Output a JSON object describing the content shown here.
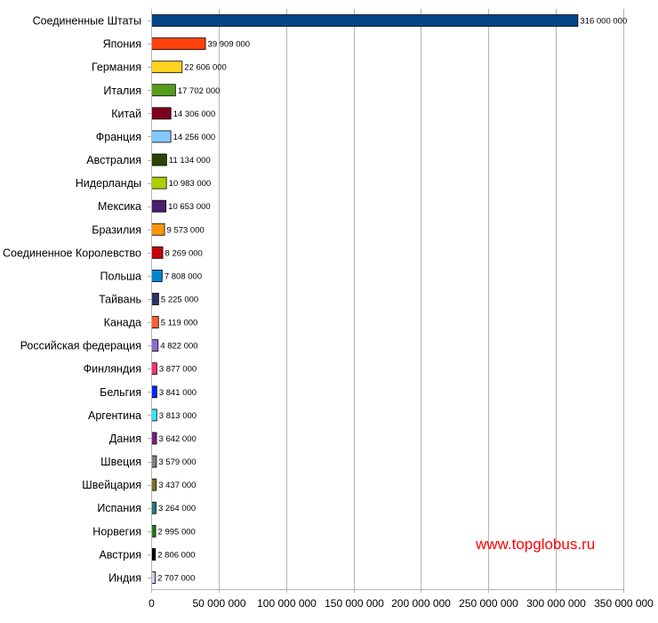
{
  "chart_data": {
    "type": "bar",
    "orientation": "horizontal",
    "title": "",
    "xlabel": "",
    "ylabel": "",
    "xlim": [
      0,
      350000000
    ],
    "grid": true,
    "legend": "none",
    "categories": [
      "Соединенные Штаты",
      "Япония",
      "Германия",
      "Италия",
      "Китай",
      "Франция",
      "Австралия",
      "Нидерланды",
      "Мексика",
      "Бразилия",
      "Соединенное Королевство",
      "Польша",
      "Тайвань",
      "Канада",
      "Российская федерация",
      "Финляндия",
      "Бельгия",
      "Аргентина",
      "Дания",
      "Швеция",
      "Швейцария",
      "Испания",
      "Норвегия",
      "Австрия",
      "Индия"
    ],
    "values": [
      316000000,
      39909000,
      22606000,
      17702000,
      14306000,
      14256000,
      11134000,
      10983000,
      10653000,
      9573000,
      8269000,
      7808000,
      5225000,
      5119000,
      4822000,
      3877000,
      3841000,
      3813000,
      3642000,
      3579000,
      3437000,
      3264000,
      2995000,
      2806000,
      2707000
    ],
    "value_labels": [
      "316 000 000",
      "39 909 000",
      "22 606 000",
      "17 702 000",
      "14 306 000",
      "14 256 000",
      "11 134 000",
      "10 983 000",
      "10 653 000",
      "9 573 000",
      "8 269 000",
      "7 808 000",
      "5 225 000",
      "5 119 000",
      "4 822 000",
      "3 877 000",
      "3 841 000",
      "3 813 000",
      "3 642 000",
      "3 579 000",
      "3 437 000",
      "3 264 000",
      "2 995 000",
      "2 806 000",
      "2 707 000"
    ],
    "colors": [
      "#004586",
      "#ff420e",
      "#ffd320",
      "#579d1c",
      "#7e0021",
      "#83caff",
      "#314004",
      "#aecf00",
      "#4b1f6f",
      "#ff950e",
      "#c5000b",
      "#0084d1",
      "#283468",
      "#ff5f33",
      "#8e6bd0",
      "#ff3366",
      "#0026ff",
      "#33e6ff",
      "#7b1f7f",
      "#808080",
      "#807320",
      "#1f7a7a",
      "#1f7f1f",
      "#000000",
      "#d0d0ff"
    ],
    "x_ticks": [
      0,
      50000000,
      100000000,
      150000000,
      200000000,
      250000000,
      300000000,
      350000000
    ],
    "x_tick_labels": [
      "0",
      "50 000 000",
      "100 000 000",
      "150 000 000",
      "200 000 000",
      "250 000 000",
      "300 000 000",
      "350 000 000"
    ]
  },
  "watermark": "www.topglobus.ru"
}
